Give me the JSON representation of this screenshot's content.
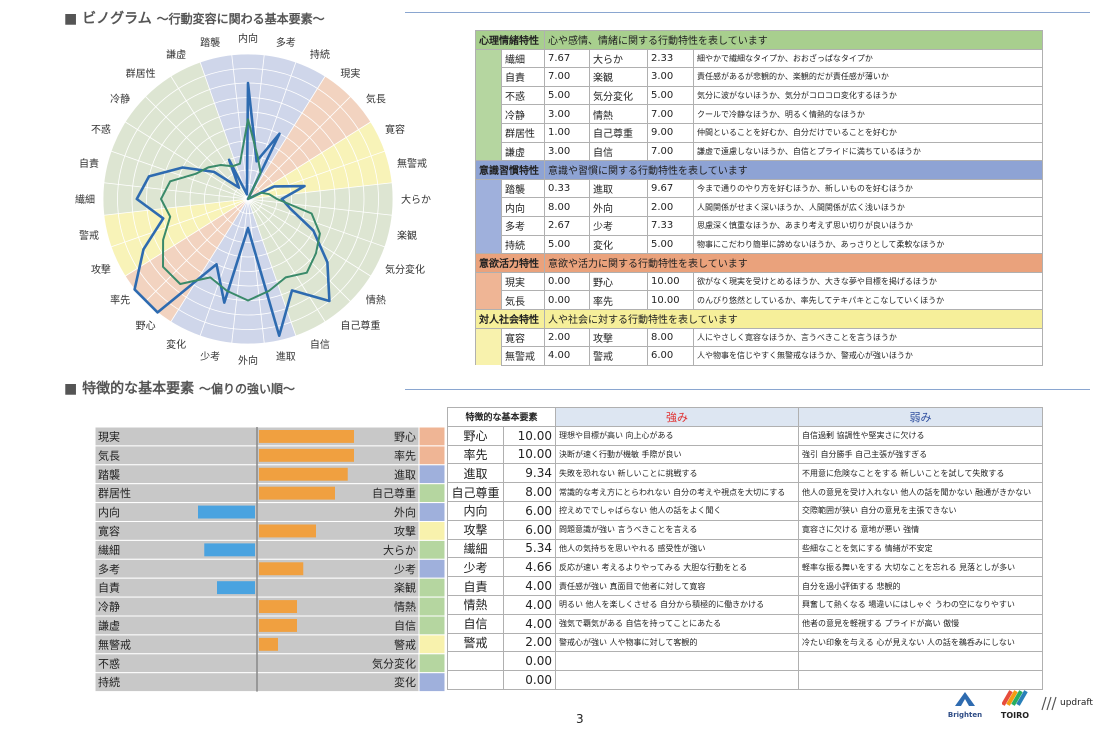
{
  "radar": {
    "title": "ビノグラム",
    "subtitle": "～行動変容に関わる基本要素～",
    "labels": [
      "内向",
      "多考",
      "持続",
      "現実",
      "気長",
      "寛容",
      "無警戒",
      "大らか",
      "楽観",
      "気分変化",
      "情熱",
      "自己尊重",
      "自信",
      "進取",
      "外向",
      "少考",
      "変化",
      "野心",
      "率先",
      "攻撃",
      "警戒",
      "繊細",
      "自責",
      "不惑",
      "冷静",
      "群居性",
      "謙虚",
      "踏襲"
    ],
    "series": [
      {
        "name": "score",
        "color": "#2e6bb0",
        "values": [
          8.0,
          2.67,
          5.0,
          0.0,
          0.0,
          2.0,
          4.0,
          2.33,
          3.0,
          5.0,
          7.0,
          9.0,
          7.0,
          9.67,
          2.0,
          7.33,
          5.0,
          10.0,
          10.0,
          8.0,
          6.0,
          7.67,
          7.0,
          5.0,
          3.0,
          1.0,
          3.0,
          0.33
        ]
      },
      {
        "name": "outline",
        "color": "#3a8a6a",
        "values": [
          5.5,
          3.0,
          2.0,
          0.0,
          0.0,
          1.0,
          1.5,
          2.0,
          4.5,
          5.5,
          6.0,
          6.5,
          6.0,
          6.5,
          7.0,
          6.5,
          6.0,
          7.5,
          7.5,
          6.5,
          5.5,
          6.0,
          5.5,
          4.0,
          3.5,
          3.0,
          2.5,
          2.5
        ]
      }
    ],
    "max": 10,
    "sectors": [
      {
        "color": "#cfd6ea"
      },
      {
        "color": "#cfd6ea"
      },
      {
        "color": "#cfd6ea"
      },
      {
        "color": "#f2d3c0"
      },
      {
        "color": "#f2d3c0"
      },
      {
        "color": "#f8f3b8"
      },
      {
        "color": "#f8f3b8"
      },
      {
        "color": "#dde5d2"
      },
      {
        "color": "#dde5d2"
      },
      {
        "color": "#dde5d2"
      },
      {
        "color": "#dde5d2"
      },
      {
        "color": "#dde5d2"
      },
      {
        "color": "#dde5d2"
      },
      {
        "color": "#cfd6ea"
      },
      {
        "color": "#cfd6ea"
      },
      {
        "color": "#cfd6ea"
      },
      {
        "color": "#cfd6ea"
      },
      {
        "color": "#f2d3c0"
      },
      {
        "color": "#f2d3c0"
      },
      {
        "color": "#f8f3b8"
      },
      {
        "color": "#f8f3b8"
      },
      {
        "color": "#dde5d2"
      },
      {
        "color": "#dde5d2"
      },
      {
        "color": "#dde5d2"
      },
      {
        "color": "#dde5d2"
      },
      {
        "color": "#dde5d2"
      },
      {
        "color": "#dde5d2"
      },
      {
        "color": "#cfd6ea"
      }
    ]
  },
  "traits": [
    {
      "category": "心理情緒特性",
      "desc": "心や感情、情緒に関する行動特性を表しています",
      "color": "#a8cf8e",
      "side": "#b5d6a0",
      "rows": [
        [
          "繊細",
          "7.67",
          "大らか",
          "2.33",
          "細やかで繊細なタイプか、おおざっぱなタイプか"
        ],
        [
          "自責",
          "7.00",
          "楽観",
          "3.00",
          "責任感があるが悲観的か、楽観的だが責任感が薄いか"
        ],
        [
          "不惑",
          "5.00",
          "気分変化",
          "5.00",
          "気分に波がないほうか、気分がコロコロ変化するほうか"
        ],
        [
          "冷静",
          "3.00",
          "情熱",
          "7.00",
          "クールで冷静なほうか、明るく情熱的なほうか"
        ],
        [
          "群居性",
          "1.00",
          "自己尊重",
          "9.00",
          "仲間といることを好むか、自分だけでいることを好むか"
        ],
        [
          "謙虚",
          "3.00",
          "自信",
          "7.00",
          "謙虚で遠慮しないほうか、自信とプライドに満ちているほうか"
        ]
      ]
    },
    {
      "category": "意識習慣特性",
      "desc": "意識や習慣に関する行動特性を表しています",
      "color": "#8ea3d4",
      "side": "#9fb0dc",
      "rows": [
        [
          "踏襲",
          "0.33",
          "進取",
          "9.67",
          "今まで通りのやり方を好むほうか、新しいものを好むほうか"
        ],
        [
          "内向",
          "8.00",
          "外向",
          "2.00",
          "人間関係がせまく深いほうか、人間関係が広く浅いほうか"
        ],
        [
          "多考",
          "2.67",
          "少考",
          "7.33",
          "思慮深く慎重なほうか、あまり考えず思い切りが良いほうか"
        ],
        [
          "持続",
          "5.00",
          "変化",
          "5.00",
          "物事にこだわり簡単に諦めないほうか、あっさりとして柔軟なほうか"
        ]
      ]
    },
    {
      "category": "意欲活力特性",
      "desc": "意欲や活力に関する行動特性を表しています",
      "color": "#eaa27c",
      "side": "#efb595",
      "rows": [
        [
          "現実",
          "0.00",
          "野心",
          "10.00",
          "欲がなく現実を受けとめるほうか、大きな夢や目標を掲げるほうか"
        ],
        [
          "気長",
          "0.00",
          "率先",
          "10.00",
          "のんびり悠然としているか、率先してテキパキとこなしていくほうか"
        ]
      ]
    },
    {
      "category": "対人社会特性",
      "desc": "人や社会に対する行動特性を表しています",
      "color": "#f6ef9a",
      "side": "#f8f2ad",
      "rows": [
        [
          "寛容",
          "2.00",
          "攻撃",
          "8.00",
          "人にやさしく寛容なほうか、言うべきことを言うほうか"
        ],
        [
          "無警戒",
          "4.00",
          "警戒",
          "6.00",
          "人や物事を信じやすく無警戒なほうか、警戒心が強いほうか"
        ]
      ]
    }
  ],
  "characteristic": {
    "title": "特徴的な基本要素",
    "subtitle": "～偏りの強い順～",
    "header": {
      "name": "特徴的な基本要素",
      "strength": "強み",
      "weakness": "弱み"
    },
    "rows": [
      {
        "left": "現実",
        "right": "野心",
        "value": "10.00",
        "name": "野心",
        "lv": 0,
        "rv": 10,
        "catColor": "#efb595",
        "strength": "理想や目標が高い  向上心がある",
        "weakness": "自信過剰  協調性や堅実さに欠ける"
      },
      {
        "left": "気長",
        "right": "率先",
        "value": "10.00",
        "name": "率先",
        "lv": 0,
        "rv": 10,
        "catColor": "#efb595",
        "strength": "決断が速く行動が機敏  手際が良い",
        "weakness": "強引  自分勝手  自己主張が強すぎる"
      },
      {
        "left": "踏襲",
        "right": "進取",
        "value": "9.34",
        "name": "進取",
        "lv": 0,
        "rv": 9.34,
        "catColor": "#9fb0dc",
        "strength": "失敗を恐れない  新しいことに挑戦する",
        "weakness": "不用意に危険なことをする  新しいことを試して失敗する"
      },
      {
        "left": "群居性",
        "right": "自己尊重",
        "value": "8.00",
        "name": "自己尊重",
        "lv": 0,
        "rv": 8,
        "catColor": "#b5d6a0",
        "strength": "常識的な考え方にとらわれない  自分の考えや視点を大切にする",
        "weakness": "他人の意見を受け入れない  他人の話を聞かない  融通がきかない"
      },
      {
        "left": "内向",
        "right": "外向",
        "value": "6.00",
        "name": "内向",
        "lv": 6,
        "rv": 0,
        "catColor": "#9fb0dc",
        "strength": "控えめででしゃばらない  他人の話をよく聞く",
        "weakness": "交際範囲が狭い  自分の意見を主張できない"
      },
      {
        "left": "寛容",
        "right": "攻撃",
        "value": "6.00",
        "name": "攻撃",
        "lv": 0,
        "rv": 6,
        "catColor": "#f8f2ad",
        "strength": "問題意識が強い  言うべきことを言える",
        "weakness": "寛容さに欠ける  意地が悪い  強情"
      },
      {
        "left": "繊細",
        "right": "大らか",
        "value": "5.34",
        "name": "繊細",
        "lv": 5.34,
        "rv": 0,
        "catColor": "#b5d6a0",
        "strength": "他人の気持ちを思いやれる  感受性が強い",
        "weakness": "些細なことを気にする  情緒が不安定"
      },
      {
        "left": "多考",
        "right": "少考",
        "value": "4.66",
        "name": "少考",
        "lv": 0,
        "rv": 4.66,
        "catColor": "#9fb0dc",
        "strength": "反応が速い  考えるよりやってみる  大胆な行動をとる",
        "weakness": "軽率な振る舞いをする  大切なことを忘れる  見落としが多い"
      },
      {
        "left": "自責",
        "right": "楽観",
        "value": "4.00",
        "name": "自責",
        "lv": 4,
        "rv": 0,
        "catColor": "#b5d6a0",
        "strength": "責任感が強い  真面目で他者に対して寛容",
        "weakness": "自分を過小評価する  悲観的"
      },
      {
        "left": "冷静",
        "right": "情熱",
        "value": "4.00",
        "name": "情熱",
        "lv": 0,
        "rv": 4,
        "catColor": "#b5d6a0",
        "strength": "明るい  他人を楽しくさせる  自分から積極的に働きかける",
        "weakness": "興奮して熱くなる  場違いにはしゃぐ  うわの空になりやすい"
      },
      {
        "left": "謙虚",
        "right": "自信",
        "value": "4.00",
        "name": "自信",
        "lv": 0,
        "rv": 4,
        "catColor": "#b5d6a0",
        "strength": "強気で覇気がある  自信を持ってことにあたる",
        "weakness": "他者の意見を軽視する  プライドが高い  傲慢"
      },
      {
        "left": "無警戒",
        "right": "警戒",
        "value": "2.00",
        "name": "警戒",
        "lv": 0,
        "rv": 2,
        "catColor": "#f8f2ad",
        "strength": "警戒心が強い  人や物事に対して客観的",
        "weakness": "冷たい印象を与える  心が見えない  人の話を鵜呑みにしない"
      },
      {
        "left": "不惑",
        "right": "気分変化",
        "value": "0.00",
        "name": "",
        "lv": 0,
        "rv": 0,
        "catColor": "#b5d6a0",
        "strength": "",
        "weakness": ""
      },
      {
        "left": "持続",
        "right": "変化",
        "value": "0.00",
        "name": "",
        "lv": 0,
        "rv": 0,
        "catColor": "#9fb0dc",
        "strength": "",
        "weakness": ""
      }
    ]
  },
  "footer": {
    "page": "3",
    "logo1": "Brighten",
    "logo2": "TOIRO",
    "logo3": "updraft"
  },
  "colors": {
    "orange": "#f0a040",
    "blue": "#4aa3e0",
    "strength": "#e03030",
    "weakness": "#3050a0"
  }
}
